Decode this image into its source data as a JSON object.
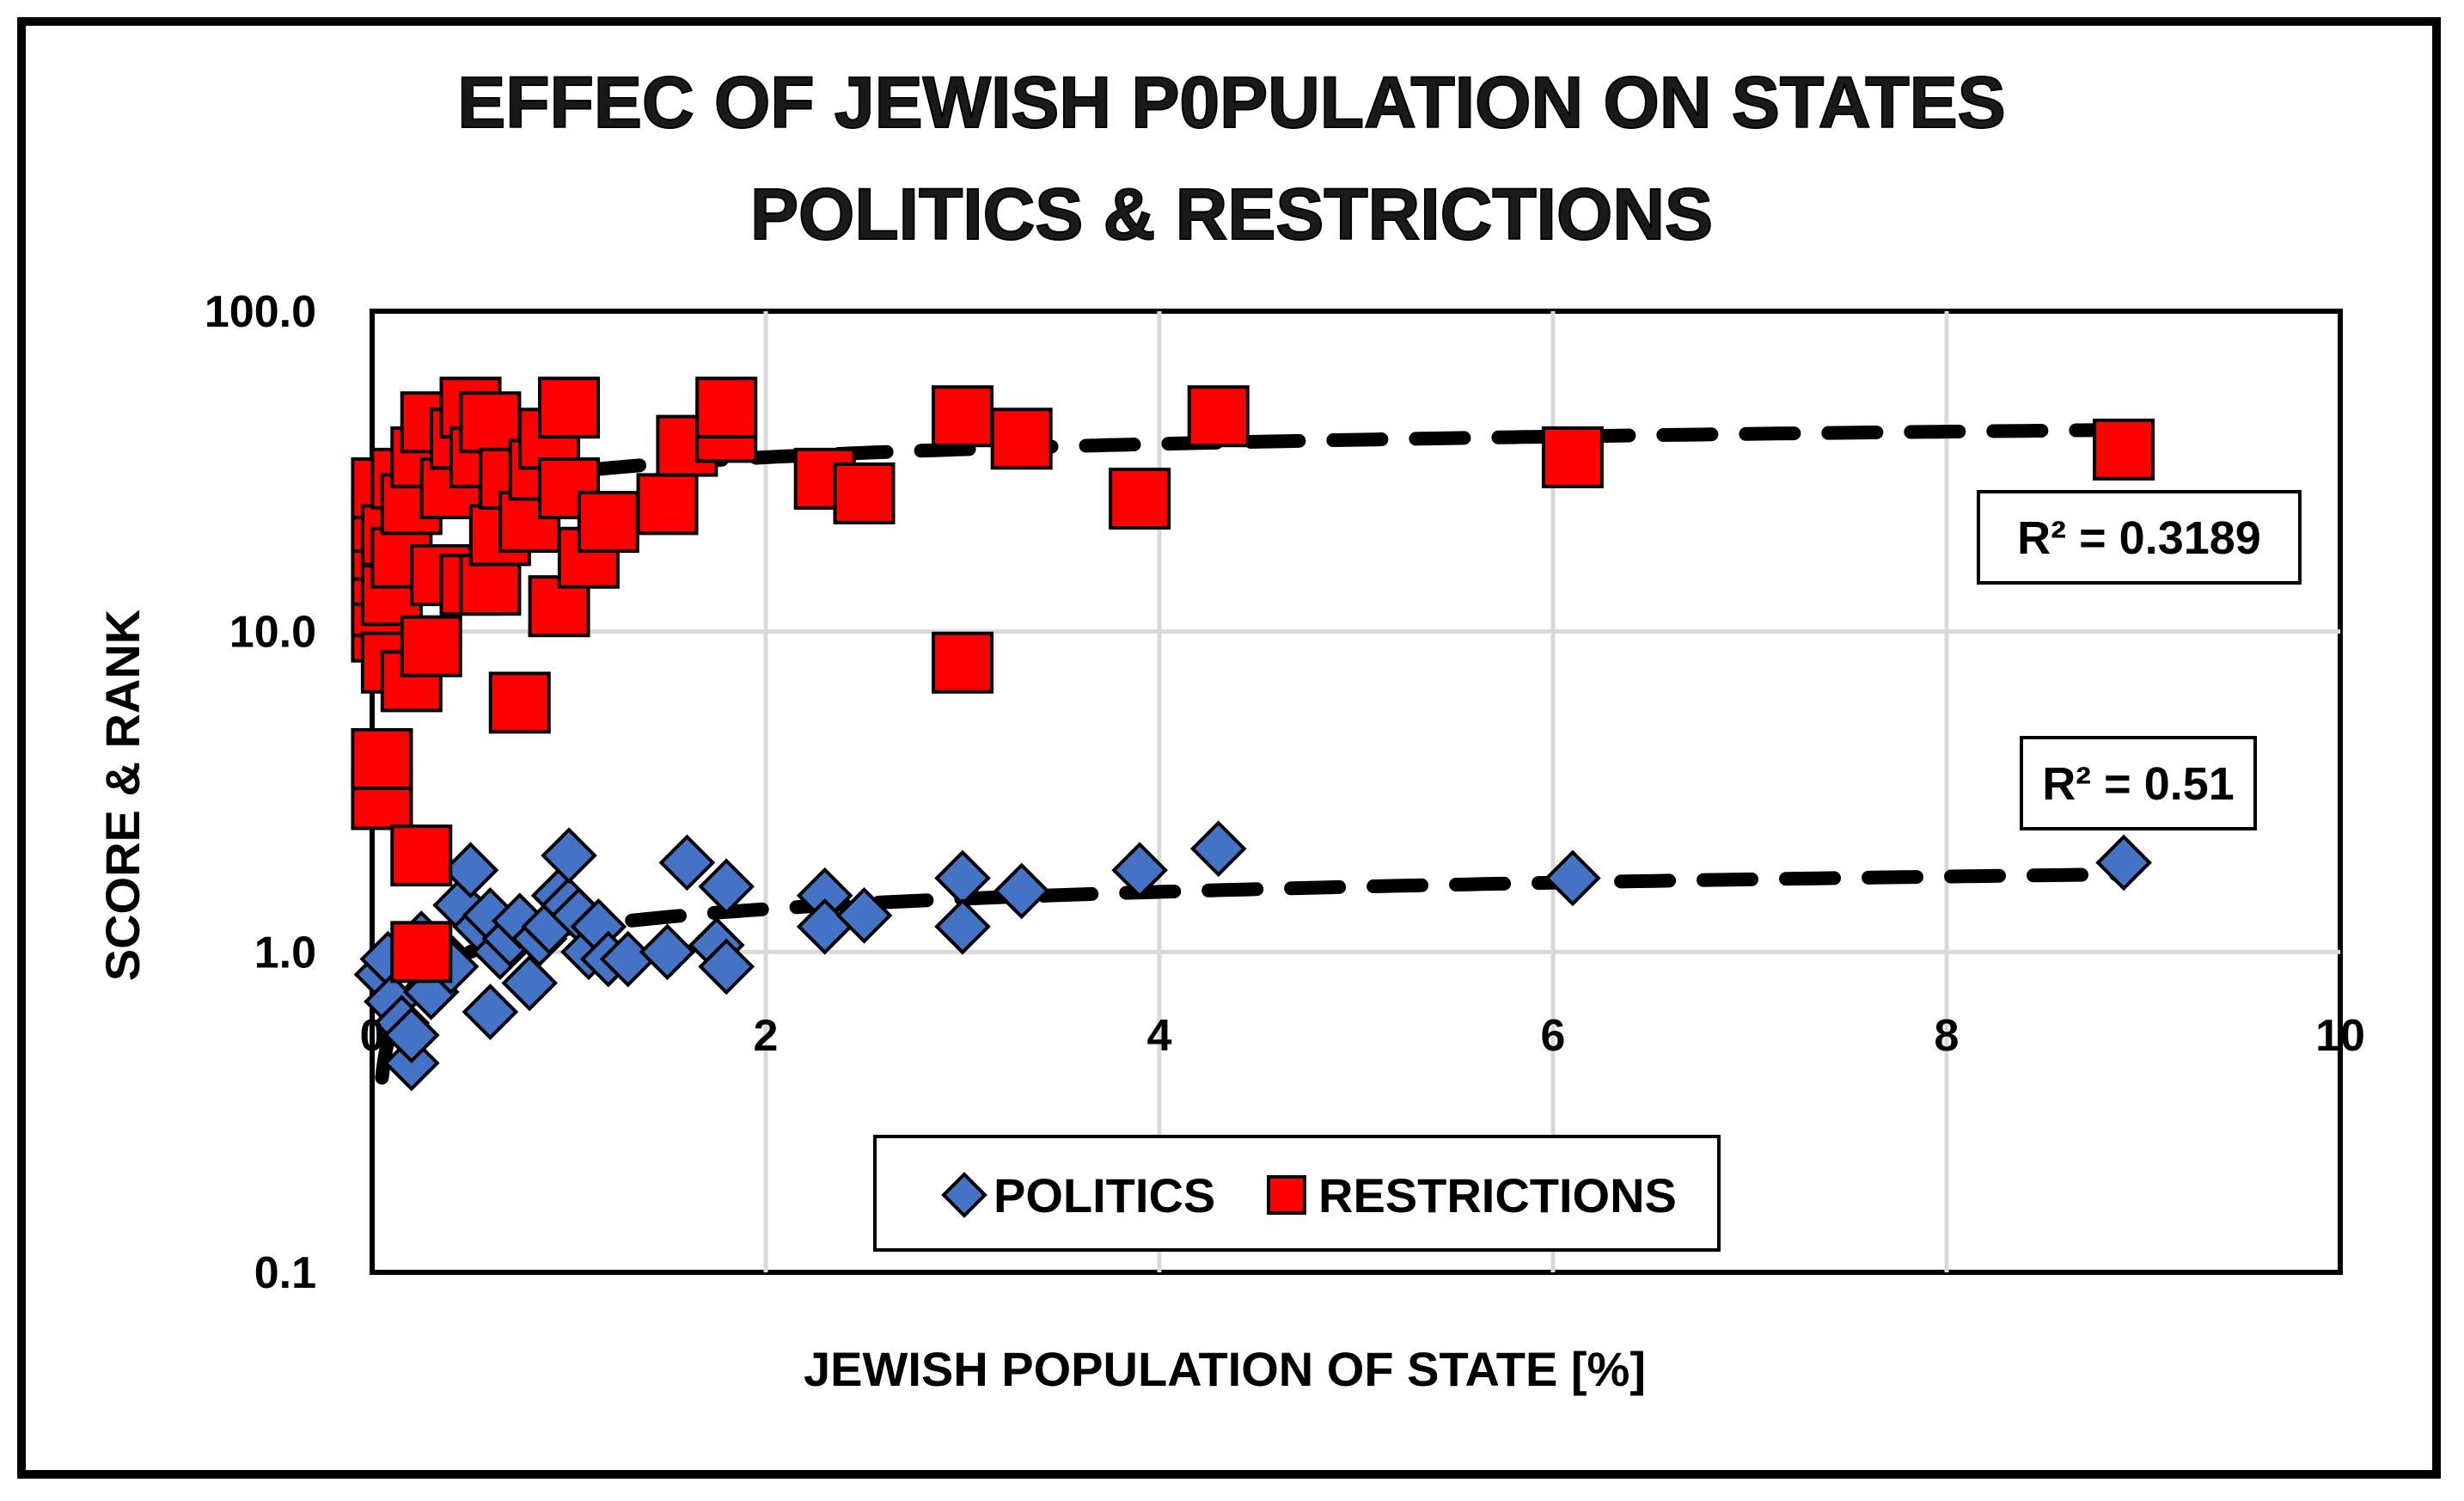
{
  "chart_data": {
    "type": "scatter",
    "title_lines": [
      "EFFEC OF JEWISH P0PULATION ON STATES",
      "POLITICS & RESTRICTIONS"
    ],
    "xlabel": "JEWISH POPULATION OF STATE [%]",
    "ylabel": "SCORE & RANK",
    "xlim": [
      0,
      10
    ],
    "ylim": [
      0.1,
      100
    ],
    "yscale": "log",
    "x_ticks": [
      "0",
      "2",
      "4",
      "6",
      "8",
      "10"
    ],
    "y_ticks": [
      "0.1",
      "1.0",
      "10.0",
      "100.0"
    ],
    "grid": true,
    "legend_position": "bottom-center",
    "colors": {
      "politics": "#4472C4",
      "restrictions": "#FF0000",
      "trend": "#000000",
      "grid": "#d9d9d9"
    },
    "series": [
      {
        "name": "POLITICS",
        "marker": "diamond",
        "points": [
          [
            0.05,
            0.85
          ],
          [
            0.08,
            0.95
          ],
          [
            0.1,
            0.7
          ],
          [
            0.15,
            0.6
          ],
          [
            0.2,
            0.45
          ],
          [
            0.2,
            0.55
          ],
          [
            0.25,
            1.1
          ],
          [
            0.3,
            0.75
          ],
          [
            0.35,
            1.0
          ],
          [
            0.4,
            0.9
          ],
          [
            0.45,
            1.4
          ],
          [
            0.5,
            1.8
          ],
          [
            0.55,
            1.2
          ],
          [
            0.6,
            0.65
          ],
          [
            0.6,
            1.3
          ],
          [
            0.65,
            1.0
          ],
          [
            0.7,
            1.1
          ],
          [
            0.75,
            1.25
          ],
          [
            0.8,
            0.8
          ],
          [
            0.85,
            1.1
          ],
          [
            0.9,
            1.2
          ],
          [
            0.95,
            1.5
          ],
          [
            1.0,
            1.4
          ],
          [
            1.0,
            2.0
          ],
          [
            1.05,
            1.3
          ],
          [
            1.1,
            1.0
          ],
          [
            1.15,
            1.2
          ],
          [
            1.2,
            0.95
          ],
          [
            1.3,
            0.95
          ],
          [
            1.5,
            1.0
          ],
          [
            1.6,
            1.9
          ],
          [
            1.75,
            1.05
          ],
          [
            1.8,
            0.9
          ],
          [
            1.8,
            1.6
          ],
          [
            2.3,
            1.5
          ],
          [
            2.3,
            1.2
          ],
          [
            2.5,
            1.3
          ],
          [
            3.0,
            1.7
          ],
          [
            3.0,
            1.2
          ],
          [
            3.3,
            1.55
          ],
          [
            3.9,
            1.8
          ],
          [
            4.3,
            2.1
          ],
          [
            6.1,
            1.7
          ],
          [
            8.9,
            1.9
          ]
        ],
        "r_squared_label": "R² = 0.51",
        "trend": {
          "type": "log",
          "a": 1.181,
          "b": 0.259
        }
      },
      {
        "name": "RESTRICTIONS",
        "marker": "square",
        "points": [
          [
            0.05,
            3.0
          ],
          [
            0.05,
            4.0
          ],
          [
            0.05,
            10.0
          ],
          [
            0.05,
            12.0
          ],
          [
            0.05,
            15.0
          ],
          [
            0.05,
            18.0
          ],
          [
            0.05,
            22.0
          ],
          [
            0.05,
            28.0
          ],
          [
            0.1,
            8.0
          ],
          [
            0.1,
            13.0
          ],
          [
            0.1,
            20.0
          ],
          [
            0.15,
            17.0
          ],
          [
            0.15,
            30.0
          ],
          [
            0.2,
            7.0
          ],
          [
            0.2,
            25.0
          ],
          [
            0.25,
            2.0
          ],
          [
            0.25,
            35.0
          ],
          [
            0.3,
            9.0
          ],
          [
            0.3,
            45.0
          ],
          [
            0.35,
            15.0
          ],
          [
            0.4,
            28.0
          ],
          [
            0.45,
            40.0
          ],
          [
            0.5,
            14.0
          ],
          [
            0.5,
            50.0
          ],
          [
            0.55,
            35.0
          ],
          [
            0.6,
            14.0
          ],
          [
            0.6,
            45.0
          ],
          [
            0.65,
            20.0
          ],
          [
            0.7,
            30.0
          ],
          [
            0.75,
            6.0
          ],
          [
            0.8,
            22.0
          ],
          [
            0.85,
            32.0
          ],
          [
            0.9,
            40.0
          ],
          [
            0.95,
            12.0
          ],
          [
            1.0,
            50.0
          ],
          [
            1.0,
            28.0
          ],
          [
            1.1,
            17.0
          ],
          [
            1.2,
            22.0
          ],
          [
            1.5,
            25.0
          ],
          [
            1.6,
            38.0
          ],
          [
            1.8,
            42.0
          ],
          [
            1.8,
            50.0
          ],
          [
            2.3,
            30.0
          ],
          [
            2.5,
            27.0
          ],
          [
            3.0,
            8.0
          ],
          [
            3.0,
            47.0
          ],
          [
            3.3,
            40.0
          ],
          [
            3.9,
            26.0
          ],
          [
            4.3,
            47.0
          ],
          [
            6.1,
            35.0
          ],
          [
            8.9,
            37.0
          ],
          [
            0.25,
            1.0
          ]
        ],
        "r_squared_label": "R² = 0.3189",
        "trend": {
          "type": "log",
          "a": 31.44,
          "b": 5.12
        }
      }
    ]
  }
}
